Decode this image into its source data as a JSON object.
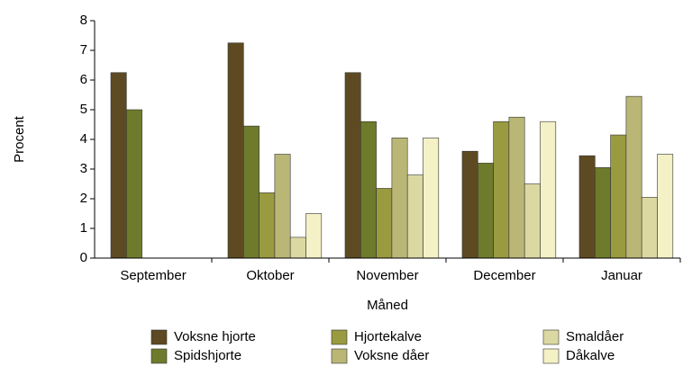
{
  "chart_data": {
    "type": "bar",
    "categories": [
      "September",
      "Oktober",
      "November",
      "December",
      "Januar"
    ],
    "series": [
      {
        "name": "Voksne hjorte",
        "color": "#5e4a22",
        "values": [
          6.25,
          7.25,
          6.25,
          3.6,
          3.45
        ]
      },
      {
        "name": "Spidshjorte",
        "color": "#6e7b2c",
        "values": [
          5.0,
          4.45,
          4.6,
          3.2,
          3.05
        ]
      },
      {
        "name": "Hjortekalve",
        "color": "#9a9a40",
        "values": [
          0,
          2.2,
          2.35,
          4.6,
          4.15
        ]
      },
      {
        "name": "Voksne dåer",
        "color": "#bab676",
        "values": [
          0,
          3.5,
          4.05,
          4.75,
          5.45
        ]
      },
      {
        "name": "Smaldåer",
        "color": "#dcd8a2",
        "values": [
          0,
          0.7,
          2.8,
          2.5,
          2.05
        ]
      },
      {
        "name": "Dåkalve",
        "color": "#f4f1c6",
        "values": [
          0,
          1.5,
          4.05,
          4.6,
          3.5
        ]
      }
    ],
    "ylim": [
      0,
      8
    ],
    "yticks": [
      0,
      1,
      2,
      3,
      4,
      5,
      6,
      7,
      8
    ],
    "x_label": "Måned",
    "y_label": "Procent"
  }
}
